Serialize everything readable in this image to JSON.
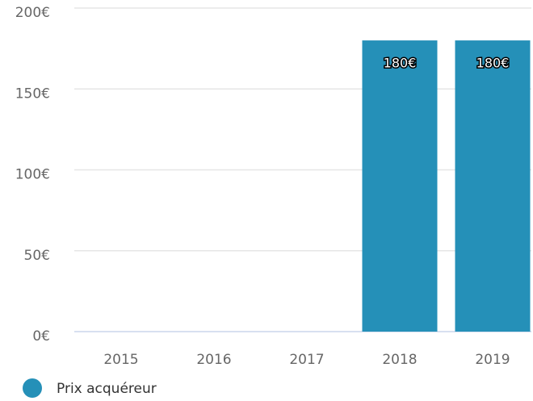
{
  "chart_data": {
    "type": "bar",
    "categories": [
      "2015",
      "2016",
      "2017",
      "2018",
      "2019"
    ],
    "series": [
      {
        "name": "Prix acquéreur",
        "color": "#2590b8",
        "values": [
          null,
          null,
          null,
          180,
          180
        ],
        "value_labels": [
          null,
          null,
          null,
          "180€",
          "180€"
        ]
      }
    ],
    "ylim": [
      0,
      200
    ],
    "yticks": [
      {
        "value": 0,
        "label": "0€"
      },
      {
        "value": 50,
        "label": "50€"
      },
      {
        "value": 100,
        "label": "100€"
      },
      {
        "value": 150,
        "label": "150€"
      },
      {
        "value": 200,
        "label": "200€"
      }
    ],
    "grid": true,
    "legend": "bottom-left"
  }
}
